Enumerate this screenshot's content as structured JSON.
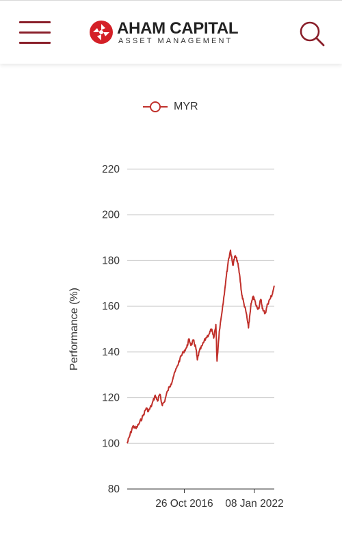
{
  "header": {
    "brand_name": "AHAM CAPITAL",
    "brand_subtitle": "ASSET MANAGEMENT",
    "menu_icon": "hamburger-menu-icon",
    "search_icon": "search-icon",
    "brand_color": "#8a1f2a",
    "logo_color": "#d42027"
  },
  "chart_data": {
    "type": "line",
    "title": "",
    "xlabel": "",
    "ylabel": "Performance (%)",
    "ylim": [
      80,
      220
    ],
    "yticks": [
      220,
      200,
      180,
      160,
      140,
      120,
      100,
      80
    ],
    "xlim": [
      "2012-08-01",
      "2023-07-01"
    ],
    "xticks": [
      {
        "label": "26 Oct 2016",
        "date": "2016-10-26"
      },
      {
        "label": "08 Jan 2022",
        "date": "2022-01-08"
      }
    ],
    "grid": true,
    "legend": "top-center",
    "series": [
      {
        "name": "MYR",
        "color": "#c0302b",
        "points": [
          [
            "2012-08-01",
            100.0
          ],
          [
            "2012-10-01",
            103.0
          ],
          [
            "2013-01-01",
            107.5
          ],
          [
            "2013-04-01",
            106.5
          ],
          [
            "2013-07-01",
            109.0
          ],
          [
            "2013-10-01",
            112.0
          ],
          [
            "2014-01-01",
            115.5
          ],
          [
            "2014-03-01",
            114.0
          ],
          [
            "2014-06-01",
            117.0
          ],
          [
            "2014-09-01",
            121.0
          ],
          [
            "2014-11-01",
            118.5
          ],
          [
            "2015-01-01",
            121.5
          ],
          [
            "2015-03-01",
            117.0
          ],
          [
            "2015-05-01",
            118.0
          ],
          [
            "2015-08-01",
            123.0
          ],
          [
            "2015-11-01",
            126.0
          ],
          [
            "2016-01-01",
            129.0
          ],
          [
            "2016-04-01",
            133.0
          ],
          [
            "2016-07-01",
            137.0
          ],
          [
            "2016-10-01",
            140.0
          ],
          [
            "2017-01-01",
            142.0
          ],
          [
            "2017-03-01",
            145.5
          ],
          [
            "2017-05-01",
            143.0
          ],
          [
            "2017-07-01",
            145.0
          ],
          [
            "2017-09-01",
            142.0
          ],
          [
            "2017-10-15",
            136.5
          ],
          [
            "2017-12-01",
            140.0
          ],
          [
            "2018-03-01",
            143.0
          ],
          [
            "2018-06-01",
            146.0
          ],
          [
            "2018-09-01",
            148.0
          ],
          [
            "2018-11-01",
            150.0
          ],
          [
            "2019-01-01",
            146.0
          ],
          [
            "2019-03-01",
            152.0
          ],
          [
            "2019-04-01",
            136.0
          ],
          [
            "2019-06-01",
            149.0
          ],
          [
            "2019-09-01",
            160.0
          ],
          [
            "2019-12-01",
            172.0
          ],
          [
            "2020-02-01",
            180.0
          ],
          [
            "2020-04-01",
            184.5
          ],
          [
            "2020-06-01",
            178.0
          ],
          [
            "2020-08-01",
            182.0
          ],
          [
            "2020-10-01",
            180.0
          ],
          [
            "2020-12-01",
            174.0
          ],
          [
            "2021-02-01",
            165.0
          ],
          [
            "2021-04-01",
            161.0
          ],
          [
            "2021-06-01",
            157.0
          ],
          [
            "2021-08-01",
            150.5
          ],
          [
            "2021-10-01",
            160.0
          ],
          [
            "2021-12-01",
            164.0
          ],
          [
            "2022-01-08",
            163.0
          ],
          [
            "2022-03-01",
            160.0
          ],
          [
            "2022-05-01",
            159.0
          ],
          [
            "2022-07-01",
            163.0
          ],
          [
            "2022-09-01",
            158.0
          ],
          [
            "2022-11-01",
            157.0
          ],
          [
            "2023-01-01",
            161.0
          ],
          [
            "2023-03-01",
            163.0
          ],
          [
            "2023-05-01",
            165.0
          ],
          [
            "2023-07-01",
            169.0
          ]
        ]
      }
    ]
  }
}
